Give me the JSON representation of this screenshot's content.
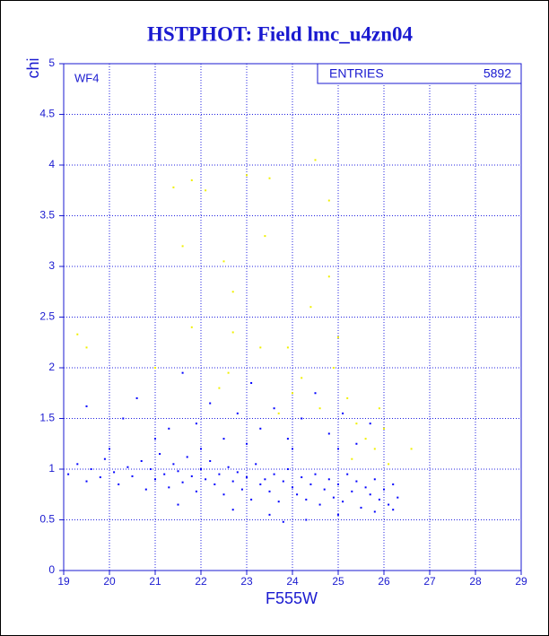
{
  "chart_data": {
    "type": "scatter",
    "title": "HSTPHOT: Field lmc_u4zn04",
    "x_label": "F555W",
    "y_label": "chi",
    "annotation": "WF4",
    "stats": {
      "label": "ENTRIES",
      "value": 5892
    },
    "xlim": [
      19,
      29
    ],
    "xticks": [
      19,
      20,
      21,
      22,
      23,
      24,
      25,
      26,
      27,
      28,
      29
    ],
    "ylim": [
      0,
      5
    ],
    "yticks": [
      0,
      0.5,
      1,
      1.5,
      2,
      2.5,
      3,
      3.5,
      4,
      4.5,
      5
    ],
    "grid": true,
    "series": [
      {
        "color": "#0000ff",
        "x": [
          19.1,
          19.3,
          19.5,
          19.6,
          19.8,
          19.9,
          20.1,
          20.2,
          20.4,
          20.5,
          20.7,
          20.8,
          20.9,
          21.0,
          21.1,
          21.2,
          21.3,
          21.4,
          21.5,
          21.6,
          21.7,
          21.8,
          21.9,
          22.0,
          22.1,
          22.2,
          22.3,
          22.4,
          22.5,
          22.6,
          22.7,
          22.8,
          22.9,
          23.0,
          23.1,
          23.2,
          23.3,
          23.4,
          23.5,
          23.6,
          23.7,
          23.8,
          23.9,
          24.0,
          24.1,
          24.2,
          24.3,
          24.4,
          24.5,
          24.6,
          24.7,
          24.8,
          24.9,
          25.0,
          25.1,
          25.2,
          25.3,
          25.4,
          25.5,
          25.6,
          25.7,
          25.8,
          25.9,
          26.0,
          26.1,
          26.2,
          26.3,
          19.5,
          20.3,
          20.6,
          21.3,
          21.6,
          21.9,
          22.2,
          22.5,
          22.8,
          23.1,
          23.3,
          23.6,
          23.9,
          24.2,
          24.5,
          24.8,
          25.1,
          25.4,
          25.7,
          23.0,
          22.0,
          24.0,
          21.0,
          20.0,
          25.0,
          23.5,
          24.3,
          25.0,
          25.8,
          22.7,
          21.5,
          23.8,
          26.2
        ],
        "values": [
          0.95,
          1.05,
          0.88,
          1.0,
          0.92,
          1.1,
          0.97,
          0.85,
          1.02,
          0.93,
          1.08,
          0.8,
          1.0,
          0.9,
          1.15,
          0.95,
          0.82,
          1.05,
          0.98,
          0.87,
          1.12,
          0.93,
          0.78,
          1.0,
          0.9,
          1.08,
          0.85,
          0.95,
          0.75,
          1.02,
          0.88,
          0.97,
          0.8,
          0.92,
          0.7,
          1.05,
          0.85,
          0.9,
          0.78,
          0.95,
          0.68,
          0.88,
          1.0,
          0.82,
          0.75,
          0.92,
          0.7,
          0.85,
          0.95,
          0.65,
          0.8,
          0.9,
          0.72,
          0.85,
          0.68,
          0.95,
          0.78,
          0.88,
          0.62,
          0.82,
          0.75,
          0.9,
          0.7,
          0.8,
          0.65,
          0.85,
          0.72,
          1.62,
          1.5,
          1.7,
          1.4,
          1.95,
          1.45,
          1.65,
          1.3,
          1.55,
          1.85,
          1.4,
          1.6,
          1.3,
          1.5,
          1.75,
          1.35,
          1.55,
          1.25,
          1.45,
          1.25,
          1.2,
          1.2,
          1.3,
          1.2,
          1.2,
          0.55,
          0.5,
          0.55,
          0.58,
          0.6,
          0.65,
          0.48,
          0.6
        ]
      },
      {
        "color": "#f0f000",
        "x": [
          19.3,
          19.5,
          21.4,
          21.6,
          21.8,
          22.1,
          22.5,
          22.7,
          23.4,
          23.0,
          23.5,
          24.5,
          24.8,
          24.8,
          24.4,
          23.3,
          22.7,
          22.4,
          21.8,
          23.9,
          24.2,
          24.6,
          25.0,
          25.2,
          25.4,
          25.6,
          25.8,
          26.0,
          26.6,
          24.9,
          24.0,
          22.6,
          23.7,
          25.3,
          26.1,
          21.0,
          25.9
        ],
        "values": [
          2.33,
          2.2,
          3.78,
          3.2,
          3.85,
          3.75,
          3.05,
          2.75,
          3.3,
          3.9,
          3.87,
          4.05,
          3.65,
          2.9,
          2.6,
          2.2,
          2.35,
          1.8,
          2.4,
          2.2,
          1.9,
          1.6,
          2.3,
          1.7,
          1.45,
          1.3,
          1.2,
          1.4,
          1.2,
          2.0,
          1.75,
          1.95,
          1.55,
          1.1,
          1.05,
          2.0,
          1.6
        ]
      }
    ]
  }
}
